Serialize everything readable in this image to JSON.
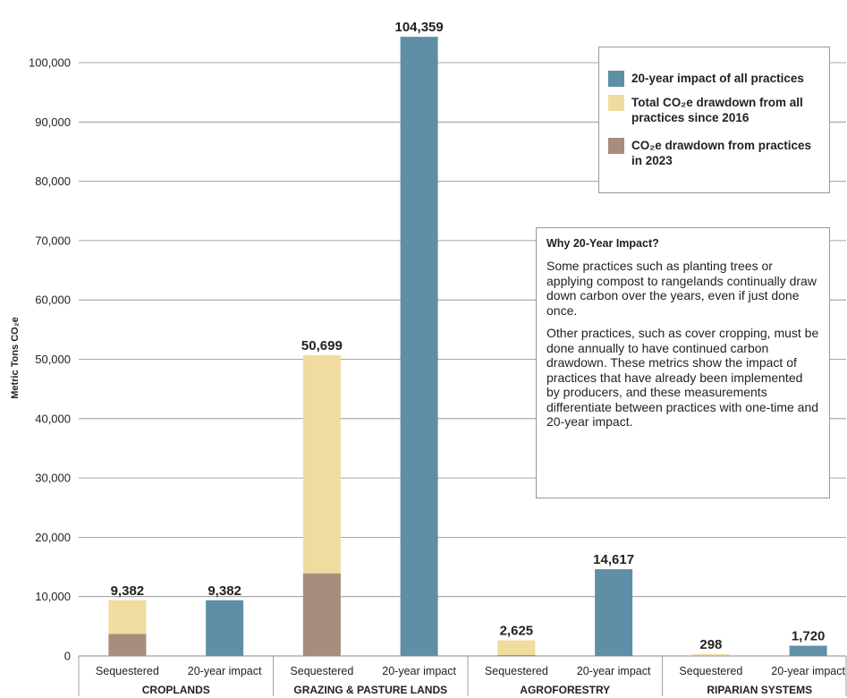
{
  "chart_data": {
    "type": "bar",
    "ylabel": "Metric Tons CO₂e",
    "ylim": [
      0,
      106000
    ],
    "yticks": [
      0,
      10000,
      20000,
      30000,
      40000,
      50000,
      60000,
      70000,
      80000,
      90000,
      100000
    ],
    "ytick_labels": [
      "0",
      "10,000",
      "20,000",
      "30,000",
      "40,000",
      "50,000",
      "60,000",
      "70,000",
      "80,000",
      "90,000",
      "100,000"
    ],
    "grid": true,
    "legend_position": "top-right",
    "series": [
      {
        "name": "20-year  impact of all practices",
        "color": "#5f8fa7"
      },
      {
        "name": "Total CO₂e drawdown from all practices since 2016",
        "color": "#f0dc9e"
      },
      {
        "name": "CO₂e drawdown from practices in 2023",
        "color": "#a88c7c"
      }
    ],
    "groups": [
      {
        "name": "CROPLANDS",
        "bars": [
          {
            "label": "Sequestered",
            "total": 9382,
            "total_label": "9,382",
            "in_2023": 3700
          },
          {
            "label": "20-year impact",
            "impact_20yr": 9382,
            "total_label": "9,382"
          }
        ]
      },
      {
        "name": "GRAZING & PASTURE LANDS",
        "bars": [
          {
            "label": "Sequestered",
            "total": 50699,
            "total_label": "50,699",
            "in_2023": 13900
          },
          {
            "label": "20-year impact",
            "impact_20yr": 104359,
            "total_label": "104,359"
          }
        ]
      },
      {
        "name": "AGROFORESTRY",
        "bars": [
          {
            "label": "Sequestered",
            "total": 2625,
            "total_label": "2,625",
            "in_2023": 150
          },
          {
            "label": "20-year impact",
            "impact_20yr": 14617,
            "total_label": "14,617"
          }
        ]
      },
      {
        "name": "RIPARIAN SYSTEMS",
        "bars": [
          {
            "label": "Sequestered",
            "total": 298,
            "total_label": "298",
            "in_2023": 60
          },
          {
            "label": "20-year impact",
            "impact_20yr": 1720,
            "total_label": "1,720"
          }
        ]
      }
    ]
  },
  "legend": {
    "items": [
      {
        "text": "20-year  impact of all practices",
        "color": "#5f8fa7"
      },
      {
        "text": "Total CO₂e drawdown from all practices since 2016",
        "color": "#f0dc9e"
      },
      {
        "text": "CO₂e drawdown from practices in 2023",
        "color": "#a88c7c"
      }
    ]
  },
  "note": {
    "title": "Why 20-Year Impact?",
    "para1": "Some practices such as planting trees or applying compost to rangelands continually draw down carbon over the years, even if just done once.",
    "para2": "Other practices, such as cover cropping, must be done annually to have continued carbon drawdown. These metrics show the impact of practices that have already been implemented by producers, and these measurements differentiate between practices with one-time and 20-year impact."
  }
}
